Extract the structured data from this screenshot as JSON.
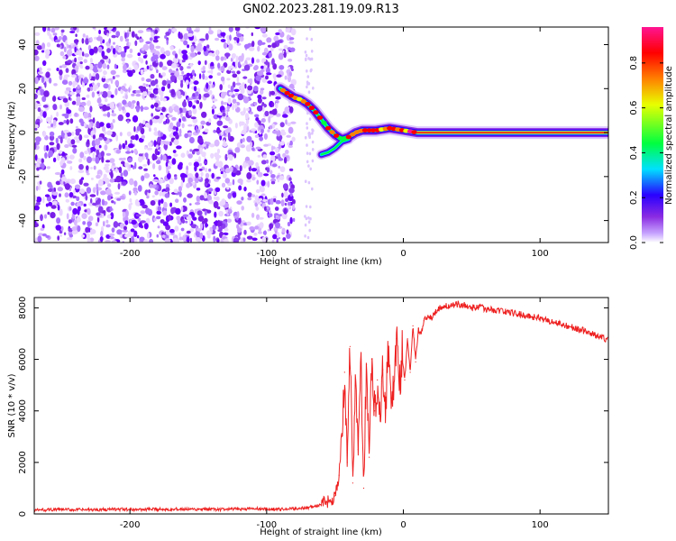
{
  "title": "GN02.2023.281.19.09.R13",
  "chart_data": [
    {
      "type": "heatmap",
      "xlabel": "Height of straight line (km)",
      "ylabel": "Frequency (Hz)",
      "xlim": [
        -270,
        150
      ],
      "ylim": [
        -50,
        48
      ],
      "xticks": [
        -200,
        -100,
        0,
        100
      ],
      "yticks": [
        -40,
        -20,
        0,
        20,
        40
      ],
      "colorbar": {
        "label": "Normalized spectral amplitude",
        "range": [
          0,
          0.96
        ],
        "ticks": [
          0.0,
          0.2,
          0.4,
          0.6,
          0.8
        ],
        "colormap": [
          "#ffffff",
          "#c9a8ff",
          "#8a2be2",
          "#2a00ff",
          "#00e0ff",
          "#00ff40",
          "#e8ff00",
          "#ff8000",
          "#ff0000",
          "#ff1493"
        ]
      },
      "noise_region": {
        "x_from": -270,
        "x_to": -80,
        "amplitude": 0.08
      },
      "signal_track": [
        {
          "x": -90,
          "f": 20
        },
        {
          "x": -85,
          "f": 18
        },
        {
          "x": -80,
          "f": 16
        },
        {
          "x": -75,
          "f": 15
        },
        {
          "x": -70,
          "f": 13
        },
        {
          "x": -65,
          "f": 10
        },
        {
          "x": -60,
          "f": 6
        },
        {
          "x": -55,
          "f": 2
        },
        {
          "x": -50,
          "f": -1
        },
        {
          "x": -45,
          "f": -3
        },
        {
          "x": -40,
          "f": -2
        },
        {
          "x": -35,
          "f": 0
        },
        {
          "x": -30,
          "f": 1
        },
        {
          "x": -20,
          "f": 1
        },
        {
          "x": -10,
          "f": 2
        },
        {
          "x": 0,
          "f": 1
        },
        {
          "x": 10,
          "f": 0
        },
        {
          "x": 150,
          "f": 0
        }
      ],
      "secondary_track": [
        {
          "x": -60,
          "f": -10
        },
        {
          "x": -55,
          "f": -9
        },
        {
          "x": -50,
          "f": -7
        },
        {
          "x": -45,
          "f": -4
        },
        {
          "x": -40,
          "f": -3
        }
      ]
    },
    {
      "type": "line",
      "xlabel": "Height of straight line (km)",
      "ylabel": "SNR (10 * v/v)",
      "xlim": [
        -270,
        150
      ],
      "ylim": [
        0,
        8400
      ],
      "xticks": [
        -200,
        -100,
        0,
        100
      ],
      "yticks": [
        0,
        2000,
        4000,
        6000,
        8000
      ],
      "color": "#ee2020",
      "series": [
        {
          "x": [
            -270,
            -250,
            -230,
            -210,
            -190,
            -170,
            -150,
            -130,
            -110,
            -90,
            -80,
            -70,
            -65,
            -60,
            -55,
            -50,
            -47,
            -45,
            -43,
            -41,
            -39,
            -37,
            -35,
            -33,
            -31,
            -29,
            -27,
            -25,
            -23,
            -21,
            -19,
            -17,
            -15,
            -13,
            -11,
            -9,
            -7,
            -5,
            -3,
            -1,
            1,
            3,
            5,
            7,
            9,
            11,
            13,
            15,
            18,
            21,
            24,
            27,
            30,
            35,
            40,
            45,
            50,
            55,
            60,
            70,
            80,
            90,
            100,
            110,
            120,
            130,
            140,
            150
          ],
          "y": [
            150,
            170,
            160,
            180,
            170,
            190,
            170,
            180,
            200,
            180,
            200,
            250,
            300,
            350,
            500,
            700,
            1500,
            3000,
            5500,
            2000,
            6500,
            1200,
            5000,
            2500,
            6000,
            1000,
            5800,
            2200,
            6000,
            4000,
            5200,
            3800,
            5600,
            4200,
            6400,
            4500,
            5000,
            6800,
            4800,
            6200,
            5200,
            6800,
            5500,
            7300,
            5900,
            7200,
            7000,
            7500,
            7700,
            7600,
            7900,
            8000,
            8100,
            8050,
            8150,
            8100,
            8000,
            8050,
            7950,
            7900,
            7800,
            7700,
            7600,
            7450,
            7300,
            7150,
            6950,
            6750
          ]
        }
      ]
    }
  ]
}
